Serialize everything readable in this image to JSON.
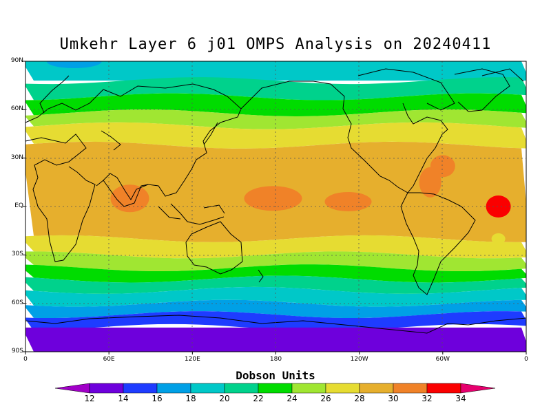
{
  "title": "Umkehr Layer 6 j01 OMPS Analysis on 20240411",
  "units_label": "Dobson Units",
  "lat_labels": [
    "90N",
    "60N",
    "30N",
    "EQ",
    "30S",
    "60S",
    "90S"
  ],
  "lon_labels": [
    "0",
    "60E",
    "120E",
    "180",
    "120W",
    "60W",
    "0"
  ],
  "colorbar": {
    "ticks": [
      "12",
      "14",
      "16",
      "18",
      "20",
      "22",
      "24",
      "26",
      "28",
      "30",
      "32",
      "34"
    ],
    "colors": [
      "#a100c8",
      "#6e00dc",
      "#1e3cff",
      "#00a0e6",
      "#00c8c8",
      "#00d28c",
      "#00dc00",
      "#a0e632",
      "#e6dc32",
      "#e6af2d",
      "#f08228",
      "#fa0000",
      "#e6006e"
    ]
  },
  "chart_data": {
    "type": "heatmap",
    "title": "Umkehr Layer 6 j01 OMPS Analysis on 20240411",
    "units": "Dobson Units",
    "levels": [
      12,
      14,
      16,
      18,
      20,
      22,
      24,
      26,
      28,
      30,
      32,
      34
    ],
    "lat_range": [
      -90,
      90
    ],
    "lon_range": [
      0,
      360
    ],
    "bands": [
      {
        "lat_from": 90,
        "lat_to": 78,
        "value": 19
      },
      {
        "lat_from": 78,
        "lat_to": 68,
        "value": 21
      },
      {
        "lat_from": 68,
        "lat_to": 58,
        "value": 23
      },
      {
        "lat_from": 58,
        "lat_to": 50,
        "value": 25
      },
      {
        "lat_from": 50,
        "lat_to": 38,
        "value": 27
      },
      {
        "lat_from": 38,
        "lat_to": -20,
        "value": 29
      },
      {
        "lat_from": -20,
        "lat_to": -30,
        "value": 27
      },
      {
        "lat_from": -30,
        "lat_to": -38,
        "value": 25
      },
      {
        "lat_from": -38,
        "lat_to": -45,
        "value": 23
      },
      {
        "lat_from": -45,
        "lat_to": -52,
        "value": 21
      },
      {
        "lat_from": -52,
        "lat_to": -60,
        "value": 19
      },
      {
        "lat_from": -60,
        "lat_to": -67,
        "value": 17
      },
      {
        "lat_from": -67,
        "lat_to": -75,
        "value": 15
      },
      {
        "lat_from": -75,
        "lat_to": -90,
        "value": 13
      }
    ],
    "features": [
      {
        "lon": 35,
        "lat": 90,
        "value": 17
      },
      {
        "lon": 340,
        "lat": 0,
        "value": 33
      },
      {
        "lon": 340,
        "lat": -20,
        "value": 27
      },
      {
        "lon": 75,
        "lat": 5,
        "value": 31
      },
      {
        "lon": 178,
        "lat": 5,
        "value": 31
      },
      {
        "lon": 232,
        "lat": 3,
        "value": 31
      },
      {
        "lon": 291,
        "lat": 15,
        "value": 31
      },
      {
        "lon": 300,
        "lat": 25,
        "value": 31
      }
    ]
  }
}
